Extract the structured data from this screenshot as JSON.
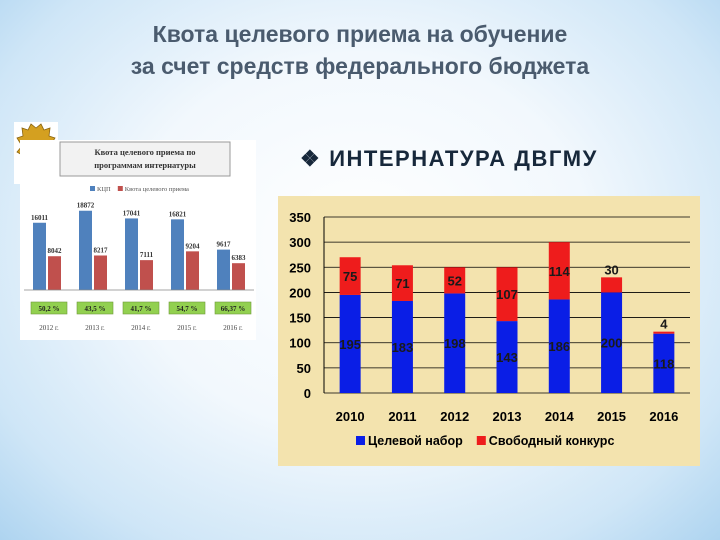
{
  "title_line1": "Квота целевого приема на обучение",
  "title_line2": "за счет средств федерального бюджета",
  "subtitle_bullet": "❖",
  "subtitle": "ИНТЕРНАТУРА ДВГМУ",
  "colors": {
    "title": "#4a5b6e",
    "blue": "#0a1ee6",
    "red": "#ee1c1c",
    "plot_bg": "#f3e3ae",
    "small_blue": "#4f81bd",
    "small_red": "#c0504d",
    "small_pct": "#92d050"
  },
  "chart_data": [
    {
      "type": "bar",
      "title": "Квота целевого приема по программам интернатуры",
      "categories": [
        "2012 г.",
        "2013 г.",
        "2014 г.",
        "2015 г.",
        "2016 г."
      ],
      "series": [
        {
          "name": "КЦП",
          "values": [
            16011,
            18872,
            17041,
            16821,
            9617
          ],
          "labels": [
            "16011",
            "18872",
            "17041",
            "16821",
            "9617"
          ]
        },
        {
          "name": "Квота целевого приема",
          "values": [
            8042,
            8217,
            7111,
            9204,
            6383
          ],
          "labels": [
            "8042",
            "8217",
            "7111",
            "9204",
            "6383"
          ]
        }
      ],
      "percents": [
        "50,2 %",
        "43,5 %",
        "41,7 %",
        "54,7 %",
        "66,37 %"
      ],
      "ylim": [
        0,
        20000
      ]
    },
    {
      "type": "bar",
      "stacked": true,
      "categories": [
        "2010",
        "2011",
        "2012",
        "2013",
        "2014",
        "2015",
        "2016"
      ],
      "series": [
        {
          "name": "Целевой набор",
          "values": [
            195,
            183,
            198,
            143,
            186,
            200,
            118
          ]
        },
        {
          "name": "Свободный конкурс",
          "values": [
            75,
            71,
            52,
            107,
            114,
            30,
            4
          ]
        }
      ],
      "yticks": [
        "0",
        "50",
        "100",
        "150",
        "200",
        "250",
        "300",
        "350"
      ],
      "ylim": [
        0,
        350
      ],
      "legend_position": "bottom"
    }
  ]
}
